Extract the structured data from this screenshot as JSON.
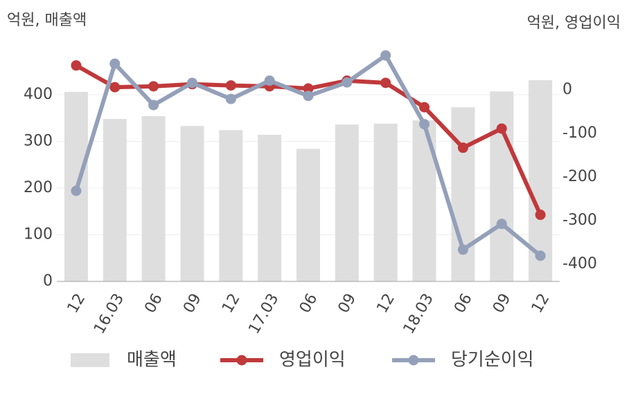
{
  "chart_data": {
    "type": "bar",
    "y_label": "억원, 매출액",
    "y2_label": "억원, 영업이익",
    "categories": [
      "12",
      "16.03",
      "06",
      "09",
      "12",
      "17.03",
      "06",
      "09",
      "12",
      "18.03",
      "06",
      "09",
      "12"
    ],
    "series": [
      {
        "name": "매출액",
        "type": "bar",
        "color": "#dedede",
        "values": [
          406,
          348,
          354,
          333,
          324,
          314,
          284,
          336,
          338,
          345,
          373,
          407,
          431
        ]
      },
      {
        "name": "영업이익",
        "type": "line",
        "axis": "y2",
        "color": "#c0393b",
        "values": [
          56,
          6,
          8,
          13,
          10,
          8,
          3,
          21,
          16,
          -40,
          -133,
          -89,
          -287
        ]
      },
      {
        "name": "당기순이익",
        "type": "line",
        "axis": "y2",
        "color": "#94a0b9",
        "values": [
          -232,
          60,
          -35,
          16,
          -21,
          21,
          -14,
          17,
          79,
          -79,
          -367,
          -308,
          -381
        ]
      }
    ],
    "ylim": [
      0,
      514
    ],
    "yticks": [
      0,
      100,
      200,
      300,
      400
    ],
    "y2lim": [
      -440,
      111
    ],
    "y2ticks": [
      0,
      -100,
      -200,
      -300,
      -400
    ],
    "grid": true
  }
}
